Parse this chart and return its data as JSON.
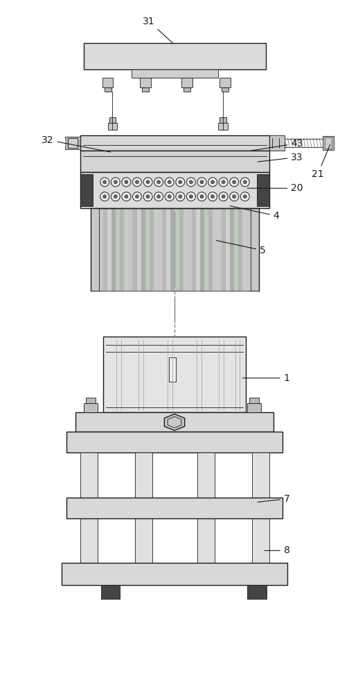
{
  "bg_color": "#ffffff",
  "lc": "#1a1a1a",
  "fc_plate": "#e0e0e0",
  "fc_dark": "#c8c8c8",
  "fc_black": "#333333",
  "fc_white": "#f0f0f0",
  "label_fontsize": 10,
  "lw_main": 1.0,
  "lw_thin": 0.6
}
